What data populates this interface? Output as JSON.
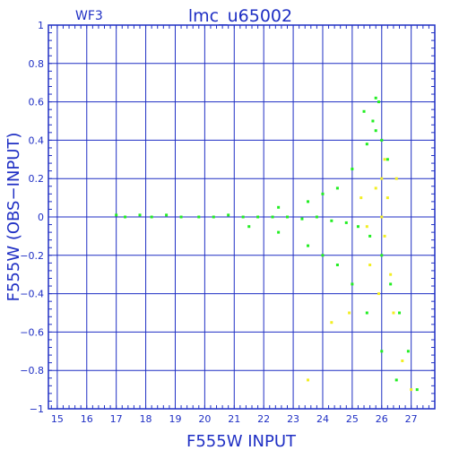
{
  "chart_data": {
    "type": "scatter",
    "panel_label": "WF3",
    "title": "lmc_u65002",
    "xlabel": "F555W INPUT",
    "ylabel": "F555W (OBS−INPUT)",
    "xlim": [
      14.7,
      27.8
    ],
    "ylim": [
      -1,
      1
    ],
    "x_ticks": [
      15,
      16,
      17,
      18,
      19,
      20,
      21,
      22,
      23,
      24,
      25,
      26,
      27
    ],
    "y_ticks": [
      -1,
      -0.8,
      -0.6,
      -0.4,
      -0.2,
      0,
      0.2,
      0.4,
      0.6,
      0.8,
      1
    ],
    "y_tick_labels": [
      "−1",
      "−0.8",
      "−0.6",
      "−0.4",
      "−0.2",
      "0",
      "0.2",
      "0.4",
      "0.6",
      "0.8",
      "1"
    ],
    "grid": true,
    "series": [
      {
        "color": "#22ee22",
        "values": [
          [
            17.0,
            0.01
          ],
          [
            17.3,
            0.0
          ],
          [
            17.8,
            0.01
          ],
          [
            18.2,
            0.0
          ],
          [
            18.7,
            0.01
          ],
          [
            19.2,
            0.0
          ],
          [
            19.8,
            0.0
          ],
          [
            20.3,
            0.0
          ],
          [
            20.8,
            0.01
          ],
          [
            21.3,
            0.0
          ],
          [
            21.8,
            0.0
          ],
          [
            22.3,
            0.0
          ],
          [
            22.8,
            0.0
          ],
          [
            23.3,
            -0.01
          ],
          [
            23.8,
            0.0
          ],
          [
            24.3,
            -0.02
          ],
          [
            24.8,
            -0.03
          ],
          [
            25.2,
            -0.05
          ],
          [
            25.6,
            -0.1
          ],
          [
            26.0,
            -0.2
          ],
          [
            26.3,
            -0.35
          ],
          [
            26.6,
            -0.5
          ],
          [
            26.9,
            -0.7
          ],
          [
            27.2,
            -0.9
          ],
          [
            24.5,
            0.15
          ],
          [
            25.0,
            0.25
          ],
          [
            25.5,
            0.38
          ],
          [
            25.8,
            0.45
          ],
          [
            25.9,
            0.6
          ],
          [
            24.0,
            0.12
          ],
          [
            23.5,
            0.08
          ],
          [
            22.5,
            0.05
          ],
          [
            24.5,
            -0.25
          ],
          [
            25.0,
            -0.35
          ],
          [
            25.5,
            -0.5
          ],
          [
            26.0,
            -0.7
          ],
          [
            26.5,
            -0.85
          ],
          [
            23.5,
            -0.15
          ],
          [
            24.0,
            -0.2
          ],
          [
            22.5,
            -0.08
          ],
          [
            21.5,
            -0.05
          ],
          [
            26.2,
            0.3
          ],
          [
            26.0,
            0.4
          ],
          [
            25.7,
            0.5
          ],
          [
            25.4,
            0.55
          ],
          [
            25.8,
            0.62
          ]
        ]
      },
      {
        "color": "#f2ee22",
        "values": [
          [
            25.5,
            -0.05
          ],
          [
            25.8,
            0.15
          ],
          [
            26.0,
            0.2
          ],
          [
            26.1,
            -0.1
          ],
          [
            26.3,
            -0.3
          ],
          [
            26.0,
            0.0
          ],
          [
            26.2,
            0.1
          ],
          [
            25.6,
            -0.25
          ],
          [
            25.9,
            -0.4
          ],
          [
            26.4,
            -0.5
          ],
          [
            26.7,
            -0.75
          ],
          [
            27.0,
            -0.9
          ],
          [
            25.3,
            0.1
          ],
          [
            26.1,
            0.3
          ],
          [
            24.9,
            -0.5
          ],
          [
            24.3,
            -0.55
          ],
          [
            23.5,
            -0.85
          ],
          [
            26.5,
            0.2
          ]
        ]
      }
    ]
  }
}
